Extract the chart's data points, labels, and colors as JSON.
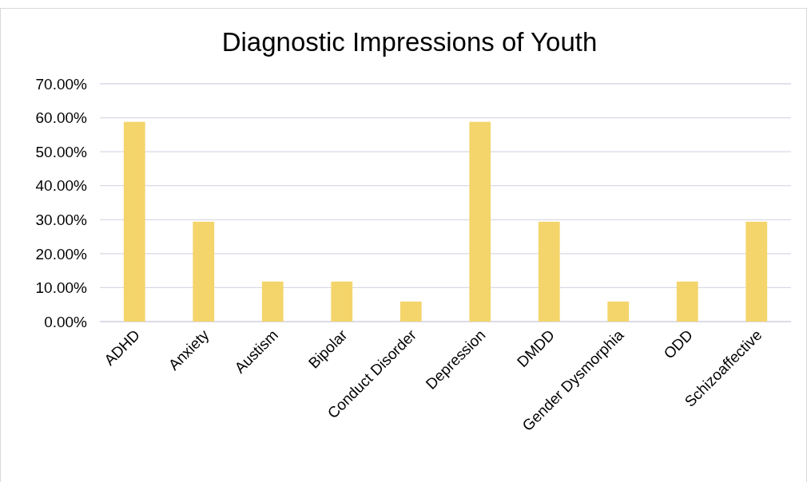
{
  "chart_data": {
    "type": "bar",
    "title": "Diagnostic Impressions of Youth",
    "categories": [
      "ADHD",
      "Anxiety",
      "Austism",
      "Bipolar",
      "Conduct Disorder",
      "Depression",
      "DMDD",
      "Gender Dysmorphia",
      "ODD",
      "Schizoaffective"
    ],
    "values": [
      58.8,
      29.4,
      11.8,
      11.8,
      5.9,
      58.8,
      29.4,
      5.9,
      11.8,
      29.4
    ],
    "color": "#f4d56c",
    "ylim": [
      0,
      70
    ],
    "yticks": [
      {
        "value": 0,
        "label": "0.00%"
      },
      {
        "value": 10,
        "label": "10.00%"
      },
      {
        "value": 20,
        "label": "20.00%"
      },
      {
        "value": 30,
        "label": "30.00%"
      },
      {
        "value": 40,
        "label": "40.00%"
      },
      {
        "value": 50,
        "label": "50.00%"
      },
      {
        "value": 60,
        "label": "60.00%"
      },
      {
        "value": 70,
        "label": "70.00%"
      }
    ],
    "grid": "y"
  }
}
